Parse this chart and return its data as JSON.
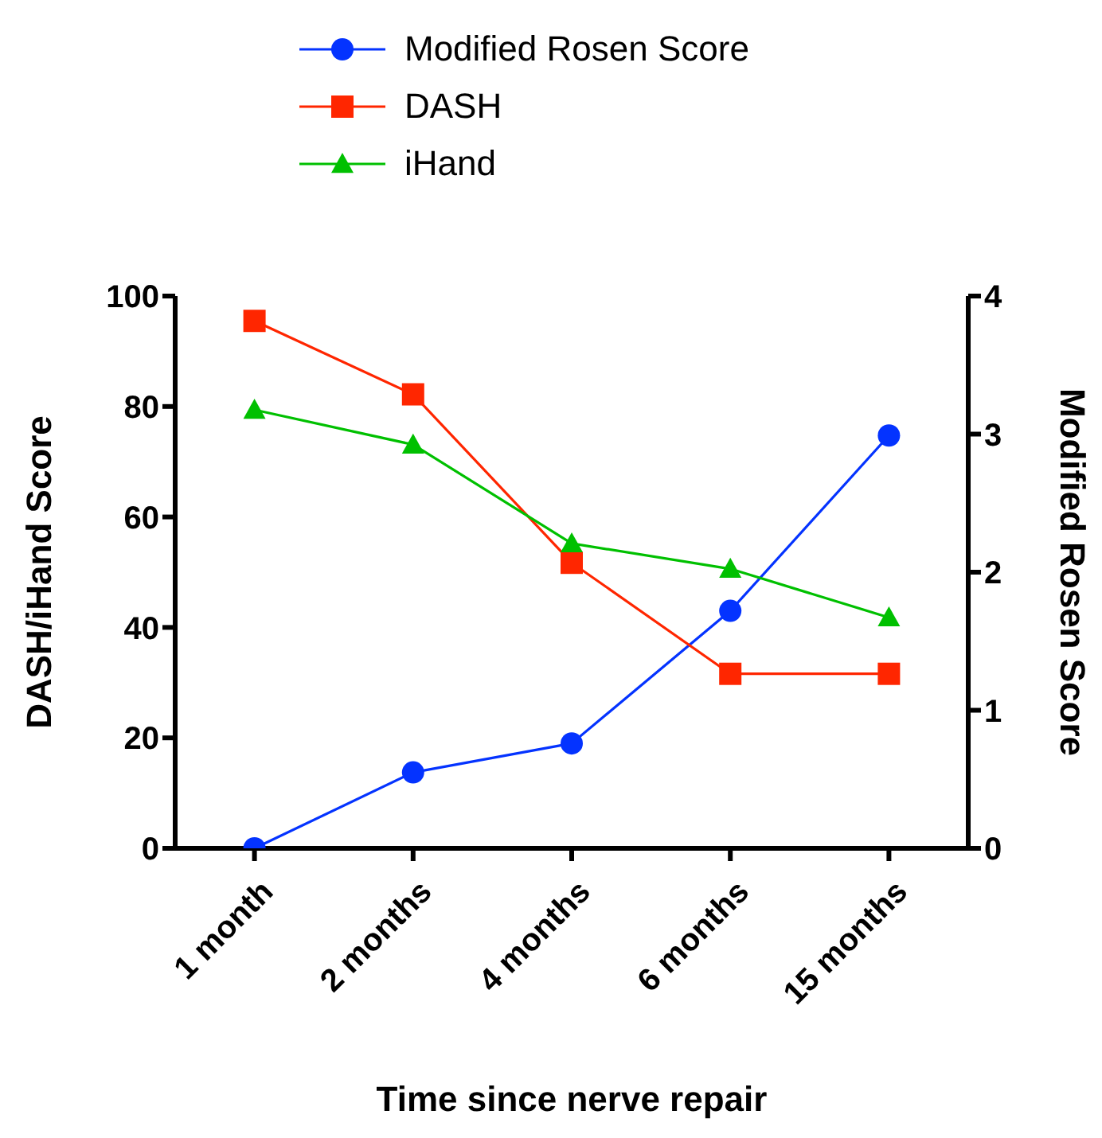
{
  "chart_data": {
    "type": "line",
    "xlabel": "Time since nerve repair",
    "ylabel": "DASH/iHand Score",
    "y2label": "Modified Rosen Score",
    "categories": [
      "1 month",
      "2 months",
      "4 months",
      "6 months",
      "15 months"
    ],
    "series": [
      {
        "name": "Modified Rosen Score",
        "color": "#0433ff",
        "marker": "circle",
        "axis": "y2",
        "values": [
          0,
          0.55,
          0.76,
          1.72,
          2.99
        ]
      },
      {
        "name": "DASH",
        "color": "#ff2600",
        "marker": "square",
        "values": [
          95.5,
          82.2,
          51.7,
          31.6,
          31.6
        ]
      },
      {
        "name": "iHand",
        "color": "#00c000",
        "marker": "triangle",
        "values": [
          79.4,
          73.1,
          55.2,
          50.6,
          41.8
        ]
      }
    ],
    "ylim": [
      0,
      100
    ],
    "yticks": [
      0,
      20,
      40,
      60,
      80,
      100
    ],
    "y2lim": [
      0,
      4
    ],
    "y2ticks": [
      0,
      1,
      2,
      3,
      4
    ],
    "grid": false,
    "legend": "top",
    "line_style": "solid"
  }
}
